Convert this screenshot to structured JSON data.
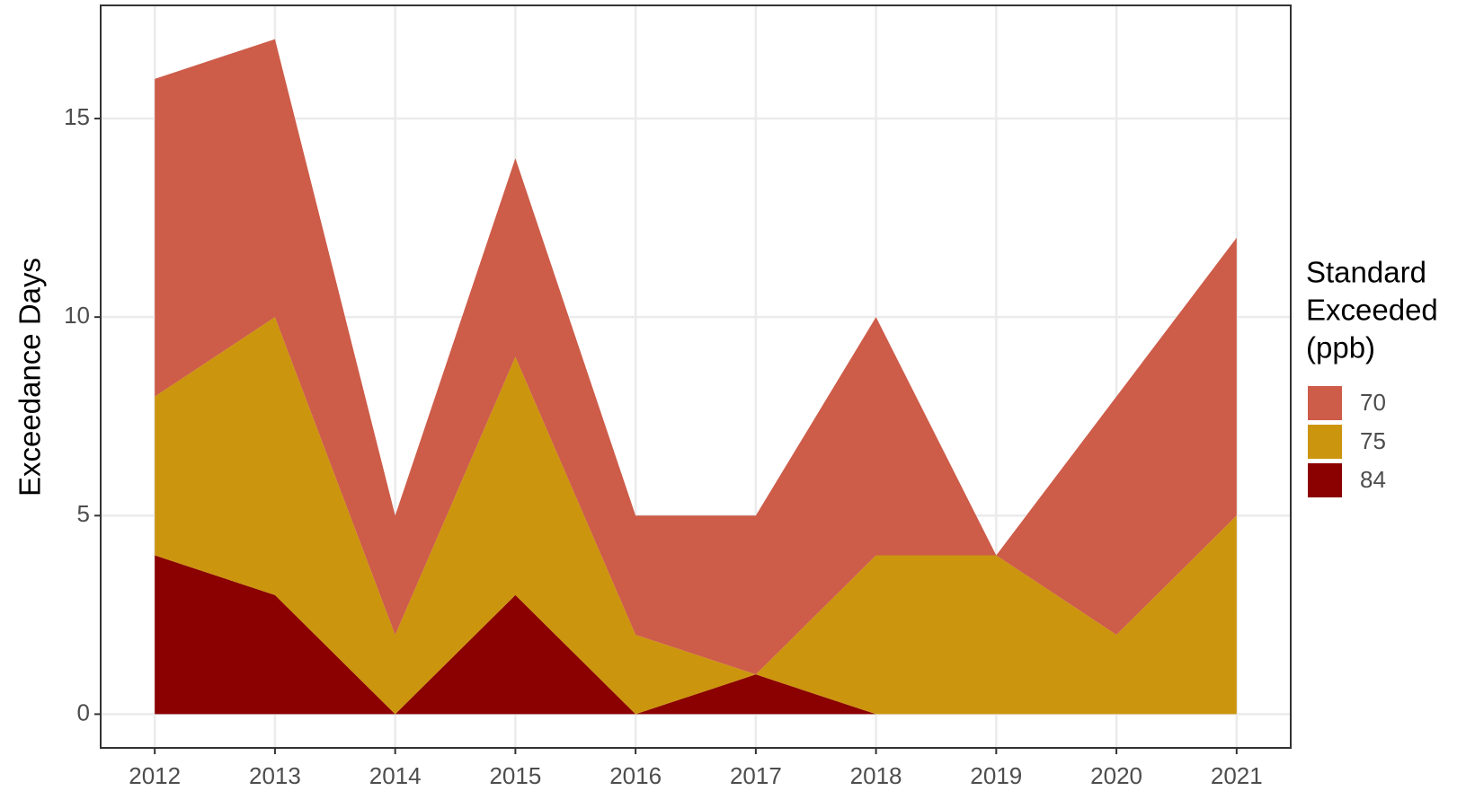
{
  "chart_data": {
    "type": "area",
    "stacked": true,
    "y_label": "Exceedance Days",
    "legend_title": [
      "Standard",
      "Exceeded",
      "(ppb)"
    ],
    "x": [
      2012,
      2013,
      2014,
      2015,
      2016,
      2017,
      2018,
      2019,
      2020,
      2021
    ],
    "series": [
      {
        "name": "70",
        "color": "#cd5c49",
        "values": [
          8,
          7,
          3,
          5,
          3,
          4,
          6,
          0,
          6,
          7
        ]
      },
      {
        "name": "75",
        "color": "#cc950e",
        "values": [
          4,
          7,
          2,
          6,
          2,
          0,
          4,
          4,
          2,
          5
        ]
      },
      {
        "name": "84",
        "color": "#8b0000",
        "values": [
          4,
          3,
          0,
          3,
          0,
          1,
          0,
          0,
          0,
          0
        ]
      }
    ],
    "xlim": [
      2011.55,
      2021.45
    ],
    "xticks": [
      2012,
      2013,
      2014,
      2015,
      2016,
      2017,
      2018,
      2019,
      2020,
      2021
    ],
    "ylim": [
      -0.85,
      17.85
    ],
    "yticks": [
      0,
      5,
      10,
      15
    ],
    "grid": true
  }
}
